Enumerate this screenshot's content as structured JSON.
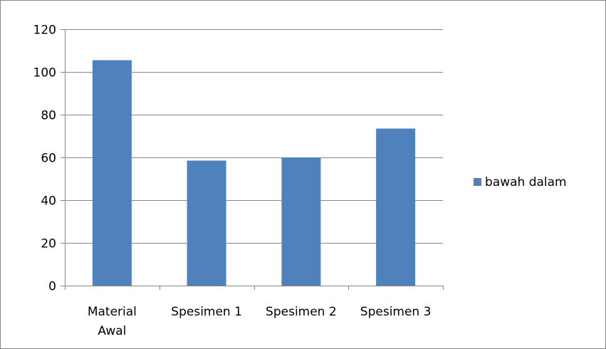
{
  "chart_data": {
    "type": "bar",
    "categories": [
      [
        "Material",
        "Awal"
      ],
      [
        "Spesimen 1"
      ],
      [
        "Spesimen 2"
      ],
      [
        "Spesimen 3"
      ]
    ],
    "series": [
      {
        "name": "bawah dalam",
        "values": [
          105.5,
          58.5,
          60,
          73.5
        ],
        "color": "#4f81bd"
      }
    ],
    "ylim": [
      0,
      120
    ],
    "yticks": [
      "0",
      "20",
      "40",
      "60",
      "80",
      "100",
      "120"
    ],
    "ytick_values": [
      0,
      20,
      40,
      60,
      80,
      100,
      120
    ],
    "grid": true,
    "legend_position": "right",
    "colors": {
      "gridline": "#868686",
      "axis": "#868686",
      "border": "#868686"
    }
  }
}
